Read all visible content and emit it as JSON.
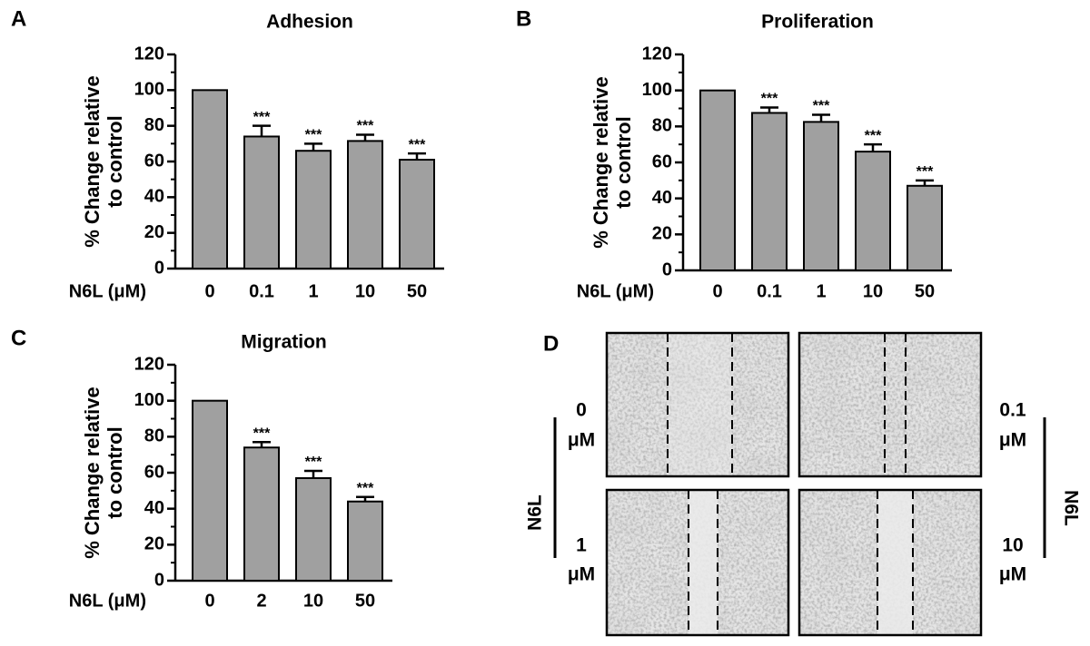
{
  "chart_data": [
    {
      "type": "bar",
      "letter": "A",
      "title": "Adhesion",
      "ylabel": [
        "% Change relative",
        "to control"
      ],
      "xlabel": "N6L (μM)",
      "categories": [
        "0",
        "0.1",
        "1",
        "10",
        "50"
      ],
      "values": [
        100,
        74,
        66,
        71.5,
        61
      ],
      "errors": [
        null,
        6,
        4,
        3.5,
        3.5
      ],
      "annotations": [
        null,
        "***",
        "***",
        "***",
        "***"
      ],
      "color": "#a0a0a0",
      "ylim": [
        0,
        120
      ],
      "yticks": [
        0,
        20,
        40,
        60,
        80,
        100,
        120
      ],
      "yminor": [
        10,
        30,
        50,
        70,
        90,
        110
      ]
    },
    {
      "type": "bar",
      "letter": "B",
      "title": "Proliferation",
      "ylabel": [
        "% Change relative",
        "to control"
      ],
      "xlabel": "N6L (μM)",
      "categories": [
        "0",
        "0.1",
        "1",
        "10",
        "50"
      ],
      "values": [
        100,
        87.5,
        82.5,
        66,
        47
      ],
      "errors": [
        null,
        3,
        4,
        4,
        3
      ],
      "annotations": [
        null,
        "***",
        "***",
        "***",
        "***"
      ],
      "color": "#a0a0a0",
      "ylim": [
        0,
        120
      ],
      "yticks": [
        0,
        20,
        40,
        60,
        80,
        100,
        120
      ],
      "yminor": [
        10,
        30,
        50,
        70,
        90,
        110
      ]
    },
    {
      "type": "bar",
      "letter": "C",
      "title": "Migration",
      "ylabel": [
        "% Change relative",
        "to control"
      ],
      "xlabel": "N6L (μM)",
      "categories": [
        "0",
        "2",
        "10",
        "50"
      ],
      "values": [
        100,
        74,
        57,
        44
      ],
      "errors": [
        null,
        3,
        4,
        2.5
      ],
      "annotations": [
        null,
        "***",
        "***",
        "***"
      ],
      "color": "#a0a0a0",
      "ylim": [
        0,
        120
      ],
      "yticks": [
        0,
        20,
        40,
        60,
        80,
        100,
        120
      ],
      "yminor": [
        10,
        30,
        50,
        70,
        90,
        110
      ]
    }
  ],
  "panel_d": {
    "letter": "D",
    "group_label": "N6L",
    "wells": [
      {
        "dose": "0",
        "unit": "μM"
      },
      {
        "dose": "0.1",
        "unit": "μM"
      },
      {
        "dose": "1",
        "unit": "μM"
      },
      {
        "dose": "10",
        "unit": "μM"
      }
    ]
  }
}
